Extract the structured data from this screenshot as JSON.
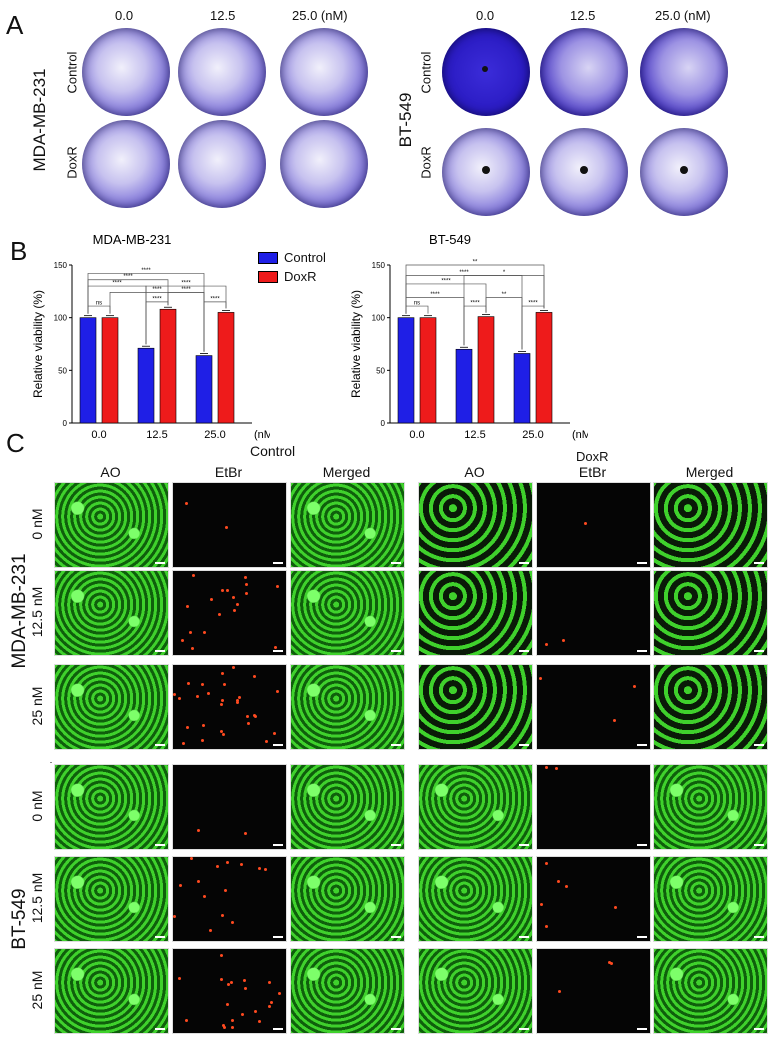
{
  "panelA": {
    "letter": "A",
    "left": {
      "cell_line": "MDA-MB-231",
      "doses": [
        "0.0",
        "12.5",
        "25.0 (nM)"
      ],
      "rows": [
        "Control",
        "DoxR"
      ]
    },
    "right": {
      "cell_line": "BT-549",
      "doses": [
        "0.0",
        "12.5",
        "25.0 (nM)"
      ],
      "rows": [
        "Control",
        "DoxR"
      ]
    }
  },
  "panelB": {
    "letter": "B",
    "legend": [
      "Control",
      "DoxR"
    ],
    "colors": {
      "control": "#1f1fe6",
      "doxr": "#ee1b1b"
    }
  },
  "chart_data": [
    {
      "type": "bar",
      "title": "MDA-MB-231",
      "ylabel": "Relative viability (%)",
      "xlabel": "",
      "unit": "(nM)",
      "categories": [
        "0.0",
        "12.5",
        "25.0"
      ],
      "ylim": [
        0,
        150
      ],
      "yticks": [
        0,
        50,
        100,
        150
      ],
      "series": [
        {
          "name": "Control",
          "values": [
            100,
            71,
            64
          ]
        },
        {
          "name": "DoxR",
          "values": [
            100,
            108,
            105
          ]
        }
      ],
      "significance": [
        "****",
        "****",
        "****",
        "****",
        "****",
        "****",
        "****",
        "****",
        "ns"
      ]
    },
    {
      "type": "bar",
      "title": "BT-549",
      "ylabel": "Relative viability (%)",
      "xlabel": "",
      "unit": "(nM)",
      "categories": [
        "0.0",
        "12.5",
        "25.0"
      ],
      "ylim": [
        0,
        150
      ],
      "yticks": [
        0,
        50,
        100,
        150
      ],
      "series": [
        {
          "name": "Control",
          "values": [
            100,
            70,
            66
          ]
        },
        {
          "name": "DoxR",
          "values": [
            100,
            101,
            105
          ]
        }
      ],
      "significance": [
        "**",
        "****",
        "*",
        "****",
        "**",
        "****",
        "****",
        "****",
        "ns",
        "ns"
      ]
    }
  ],
  "panelC": {
    "letter": "C",
    "groups": [
      "Control",
      "DoxR"
    ],
    "columns": [
      "AO",
      "EtBr",
      "Merged"
    ],
    "cell_lines": [
      "MDA-MB-231",
      "BT-549"
    ],
    "rows": [
      "0 nM",
      "12.5 nM",
      "25 nM"
    ]
  }
}
